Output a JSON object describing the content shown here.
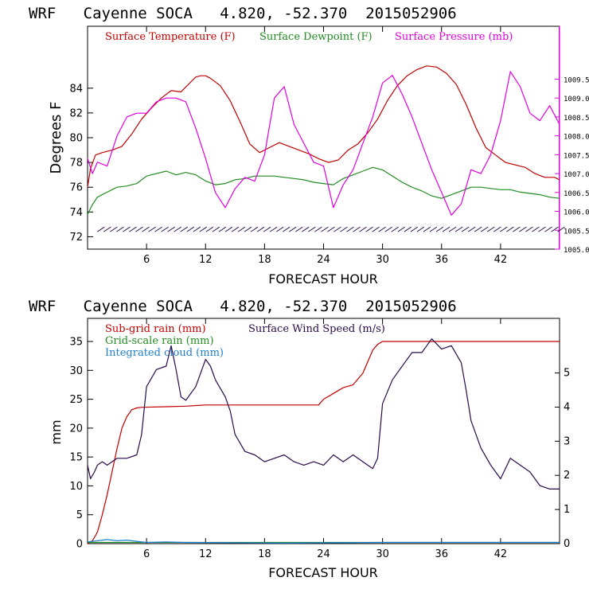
{
  "colors": {
    "temperature": "#c00000",
    "dewpoint": "#228b22",
    "pressure": "#e000e0",
    "subgrid": "#c00000",
    "gridscale": "#228b22",
    "cloud": "#1e7fd0",
    "wind": "#2a0a4a",
    "axis": "#000000"
  },
  "chart_data": [
    {
      "type": "line",
      "title": "WRF   Cayenne SOCA   4.820, -52.370  2015052906",
      "xlabel": "FORECAST HOUR",
      "ylabel": "Degrees F",
      "xlim": [
        0,
        48
      ],
      "ylim": [
        71,
        89
      ],
      "xticks": [
        "6",
        "12",
        "18",
        "24",
        "30",
        "36",
        "42"
      ],
      "xtick_values": [
        6,
        12,
        18,
        24,
        30,
        36,
        42
      ],
      "yticks": [
        "72",
        "74",
        "76",
        "78",
        "80",
        "82",
        "84"
      ],
      "ytick_values": [
        72,
        74,
        76,
        78,
        80,
        82,
        84
      ],
      "y2ticks": [
        "1005.0",
        "1005.5",
        "1006.0",
        "1006.5",
        "1007.0",
        "1007.5",
        "1008.0",
        "1008.5",
        "1009.0",
        "1009.5"
      ],
      "y2tick_values": [
        1005.0,
        1005.5,
        1006.0,
        1006.5,
        1007.0,
        1007.5,
        1008.0,
        1008.5,
        1009.0,
        1009.5
      ],
      "y2lim": [
        1005.0,
        1010.9
      ],
      "legend": [
        "Surface Temperature (F)",
        "Surface Dewpoint (F)",
        "Surface Pressure (mb)"
      ],
      "series": [
        {
          "name": "Surface Temperature (F)",
          "axis": "left",
          "x": [
            0,
            0.3,
            0.8,
            1.5,
            2.5,
            3.5,
            4.5,
            5.5,
            6.5,
            7.5,
            8.5,
            9.5,
            10.5,
            11,
            11.5,
            12,
            12.5,
            13.5,
            14.5,
            15.5,
            16.5,
            17.5,
            18.5,
            19.5,
            20.5,
            21.5,
            22.5,
            23.5,
            24.5,
            25.5,
            26.5,
            27.5,
            28.5,
            29.5,
            30.5,
            31.5,
            32.5,
            33.5,
            34.5,
            35.5,
            36.5,
            37.5,
            38.5,
            39.5,
            40.5,
            41.5,
            42.5,
            43.5,
            44.5,
            45.5,
            46.5,
            47.5,
            48
          ],
          "values": [
            76.0,
            77.5,
            78.6,
            78.8,
            79.0,
            79.3,
            80.3,
            81.5,
            82.4,
            83.2,
            83.8,
            83.7,
            84.5,
            84.9,
            85.0,
            85.0,
            84.8,
            84.2,
            83.0,
            81.3,
            79.5,
            78.8,
            79.2,
            79.6,
            79.3,
            79.0,
            78.7,
            78.3,
            78.0,
            78.2,
            79.0,
            79.5,
            80.4,
            81.5,
            83.0,
            84.2,
            85.0,
            85.5,
            85.8,
            85.7,
            85.2,
            84.3,
            82.7,
            80.8,
            79.2,
            78.6,
            78.0,
            77.8,
            77.6,
            77.1,
            76.8,
            76.8,
            76.6
          ]
        },
        {
          "name": "Surface Dewpoint (F)",
          "axis": "left",
          "x": [
            0,
            0.5,
            1.0,
            2.0,
            3.0,
            4.0,
            5.0,
            6.0,
            7.0,
            8.0,
            9.0,
            10.0,
            11.0,
            12.0,
            13.0,
            14.0,
            15.0,
            16.0,
            17.0,
            18.0,
            19.0,
            20.0,
            21.0,
            22.0,
            23.0,
            24.0,
            25.0,
            26.0,
            27.0,
            28.0,
            29.0,
            30.0,
            31.0,
            32.0,
            33.0,
            34.0,
            35.0,
            36.0,
            37.0,
            38.0,
            39.0,
            40.0,
            41.0,
            42.0,
            43.0,
            44.0,
            45.0,
            46.0,
            47.0,
            48.0
          ],
          "values": [
            73.8,
            74.6,
            75.2,
            75.6,
            76.0,
            76.1,
            76.3,
            76.9,
            77.1,
            77.3,
            77.0,
            77.2,
            77.0,
            76.5,
            76.2,
            76.3,
            76.6,
            76.7,
            76.9,
            76.9,
            76.9,
            76.8,
            76.7,
            76.6,
            76.4,
            76.3,
            76.2,
            76.7,
            77.0,
            77.3,
            77.6,
            77.4,
            76.9,
            76.4,
            76.0,
            75.7,
            75.3,
            75.1,
            75.4,
            75.7,
            76.0,
            76.0,
            75.9,
            75.8,
            75.8,
            75.6,
            75.5,
            75.4,
            75.2,
            75.1
          ]
        },
        {
          "name": "Surface Pressure (mb)",
          "axis": "right",
          "x": [
            0,
            0.5,
            1.0,
            2.0,
            3.0,
            4.0,
            5.0,
            6.0,
            7.0,
            8.0,
            9.0,
            10.0,
            11.0,
            12.0,
            13.0,
            14.0,
            15.0,
            16.0,
            17.0,
            18.0,
            19.0,
            20.0,
            21.0,
            22.0,
            23.0,
            24.0,
            25.0,
            26.0,
            27.0,
            28.0,
            29.0,
            30.0,
            31.0,
            32.0,
            33.0,
            34.0,
            35.0,
            36.0,
            37.0,
            38.0,
            39.0,
            40.0,
            41.0,
            42.0,
            43.0,
            44.0,
            45.0,
            46.0,
            47.0,
            48.0
          ],
          "values": [
            1007.4,
            1007.0,
            1007.3,
            1007.2,
            1008.0,
            1008.5,
            1008.6,
            1008.6,
            1008.9,
            1009.0,
            1009.0,
            1008.9,
            1008.2,
            1007.4,
            1006.5,
            1006.1,
            1006.6,
            1006.9,
            1006.8,
            1007.5,
            1009.0,
            1009.3,
            1008.3,
            1007.8,
            1007.3,
            1007.2,
            1006.1,
            1006.7,
            1007.1,
            1007.8,
            1008.5,
            1009.4,
            1009.6,
            1009.1,
            1008.5,
            1007.8,
            1007.1,
            1006.5,
            1005.9,
            1006.2,
            1007.1,
            1007.0,
            1007.5,
            1008.4,
            1009.7,
            1009.3,
            1008.6,
            1008.4,
            1008.8,
            1008.3
          ]
        }
      ],
      "wind_barbs": {
        "y": 72.6,
        "x_start": 1,
        "x_end": 48,
        "spacing": 0.65
      }
    },
    {
      "type": "line",
      "title": "WRF   Cayenne SOCA   4.820, -52.370  2015052906",
      "xlabel": "FORECAST HOUR",
      "ylabel": "mm",
      "xlim": [
        0,
        48
      ],
      "ylim": [
        0,
        39
      ],
      "xticks": [
        "6",
        "12",
        "18",
        "24",
        "30",
        "36",
        "42"
      ],
      "xtick_values": [
        6,
        12,
        18,
        24,
        30,
        36,
        42
      ],
      "yticks": [
        "0",
        "5",
        "10",
        "15",
        "20",
        "25",
        "30",
        "35"
      ],
      "ytick_values": [
        0,
        5,
        10,
        15,
        20,
        25,
        30,
        35
      ],
      "y2ticks": [
        "0",
        "1",
        "2",
        "3",
        "4",
        "5"
      ],
      "y2tick_values": [
        0,
        1,
        2,
        3,
        4,
        5
      ],
      "y2lim": [
        0,
        6.6
      ],
      "legend": [
        "Sub-grid rain (mm)",
        "Surface Wind Speed (m/s)",
        "Grid-scale rain (mm)",
        "Integrated cloud (mm)"
      ],
      "series": [
        {
          "name": "Sub-grid rain (mm)",
          "axis": "left",
          "x": [
            0,
            0.5,
            1.0,
            1.5,
            2.0,
            2.5,
            3.0,
            3.5,
            4.0,
            4.5,
            5.0,
            5.5,
            8.0,
            10.0,
            12.0,
            14.0,
            16.0,
            18.0,
            20.0,
            22.0,
            23.5,
            24.0,
            24.5,
            25.0,
            25.5,
            26.0,
            27.0,
            28.0,
            28.5,
            29.0,
            29.5,
            30.0,
            31.0,
            34.0,
            40.0,
            48.0
          ],
          "values": [
            0,
            0.5,
            2.0,
            5.0,
            8.5,
            12.5,
            16.5,
            20.0,
            22.0,
            23.2,
            23.5,
            23.6,
            23.7,
            23.8,
            24.0,
            24.0,
            24.0,
            24.0,
            24.0,
            24.0,
            24.0,
            25.0,
            25.5,
            26.0,
            26.5,
            27.0,
            27.5,
            29.5,
            31.5,
            33.5,
            34.5,
            35.0,
            35.0,
            35.0,
            35.0,
            35.0
          ]
        },
        {
          "name": "Grid-scale rain (mm)",
          "axis": "left",
          "x": [
            0,
            48
          ],
          "values": [
            0.2,
            0.2
          ]
        },
        {
          "name": "Integrated cloud (mm)",
          "axis": "left",
          "x": [
            0,
            1.0,
            2.0,
            3.0,
            4.0,
            5.0,
            6.0,
            8.0,
            10.0,
            20.0,
            30.0,
            40.0,
            48.0
          ],
          "values": [
            0.3,
            0.5,
            0.7,
            0.5,
            0.6,
            0.4,
            0.2,
            0.3,
            0.2,
            0.1,
            0.2,
            0.2,
            0.2
          ]
        },
        {
          "name": "Surface Wind Speed (m/s)",
          "axis": "right",
          "x": [
            0,
            0.3,
            0.7,
            1.0,
            1.5,
            2.0,
            3.0,
            4.0,
            5.0,
            5.5,
            6.0,
            7.0,
            8.0,
            8.5,
            9.0,
            9.5,
            10.0,
            11.0,
            12.0,
            12.5,
            13.0,
            14.0,
            14.5,
            15.0,
            16.0,
            17.0,
            18.0,
            19.0,
            20.0,
            21.0,
            22.0,
            23.0,
            24.0,
            25.0,
            26.0,
            27.0,
            28.0,
            29.0,
            29.5,
            30.0,
            31.0,
            32.0,
            33.0,
            34.0,
            35.0,
            36.0,
            37.0,
            38.0,
            38.5,
            39.0,
            40.0,
            41.0,
            42.0,
            43.0,
            44.0,
            45.0,
            46.0,
            47.0,
            48.0
          ],
          "values": [
            2.3,
            1.9,
            2.1,
            2.3,
            2.4,
            2.3,
            2.5,
            2.5,
            2.6,
            3.2,
            4.6,
            5.1,
            5.2,
            5.8,
            5.1,
            4.3,
            4.2,
            4.6,
            5.4,
            5.2,
            4.8,
            4.3,
            3.9,
            3.2,
            2.7,
            2.6,
            2.4,
            2.5,
            2.6,
            2.4,
            2.3,
            2.4,
            2.3,
            2.6,
            2.4,
            2.6,
            2.4,
            2.2,
            2.5,
            4.1,
            4.8,
            5.2,
            5.6,
            5.6,
            6.0,
            5.7,
            5.8,
            5.3,
            4.5,
            3.6,
            2.8,
            2.3,
            1.9,
            2.5,
            2.3,
            2.1,
            1.7,
            1.6,
            1.6
          ]
        }
      ]
    }
  ]
}
